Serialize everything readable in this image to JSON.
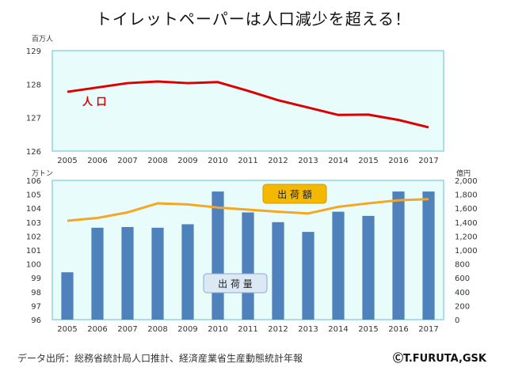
{
  "title": "トイレットペーパーは人口減少を超える！",
  "source": "データ出所：総務省統計局人口推計、経済産業省生産動態統計年報",
  "credit": "ⒸT.FURUTA,GSK",
  "colors": {
    "population_line": "#dd0000",
    "shipment_value_line": "#f5a623",
    "shipment_bar": "#4f81bd",
    "plot_background": "#e8fcfc",
    "plot_border": "#8fd6e0"
  },
  "chart_data": [
    {
      "type": "line",
      "ylabel": "百万人",
      "ylim": [
        126,
        129
      ],
      "yticks": [
        126,
        127,
        128,
        129
      ],
      "grid": false,
      "x": [
        "2005",
        "2006",
        "2007",
        "2008",
        "2009",
        "2010",
        "2011",
        "2012",
        "2013",
        "2014",
        "2015",
        "2016",
        "2017"
      ],
      "series": [
        {
          "name": "人 口",
          "values": [
            127.77,
            127.9,
            128.03,
            128.08,
            128.03,
            128.06,
            127.8,
            127.52,
            127.3,
            127.08,
            127.09,
            126.93,
            126.71
          ]
        }
      ]
    },
    {
      "type": "bar",
      "ylabel": "万トン",
      "y2label": "億円",
      "ylim": [
        96,
        106
      ],
      "y2lim": [
        0,
        2000
      ],
      "yticks": [
        96,
        97,
        98,
        99,
        100,
        101,
        102,
        103,
        104,
        105,
        106
      ],
      "y2ticks": [
        "0",
        "200",
        "400",
        "600",
        "800",
        "1,000",
        "1,200",
        "1,400",
        "1,600",
        "1,800",
        "2,000"
      ],
      "grid": false,
      "categories": [
        "2005",
        "2006",
        "2007",
        "2008",
        "2009",
        "2010",
        "2011",
        "2012",
        "2013",
        "2014",
        "2015",
        "2016",
        "2017"
      ],
      "series": [
        {
          "name": "出 荷 量",
          "axis": "left",
          "type": "bar",
          "values": [
            99.4,
            102.6,
            102.65,
            102.6,
            102.85,
            105.2,
            103.7,
            103.0,
            102.3,
            103.75,
            103.45,
            105.2,
            105.2
          ]
        },
        {
          "name": "出 荷 額",
          "axis": "right",
          "type": "line",
          "values": [
            1420,
            1460,
            1540,
            1670,
            1655,
            1610,
            1580,
            1550,
            1525,
            1620,
            1670,
            1715,
            1730
          ]
        }
      ]
    }
  ]
}
